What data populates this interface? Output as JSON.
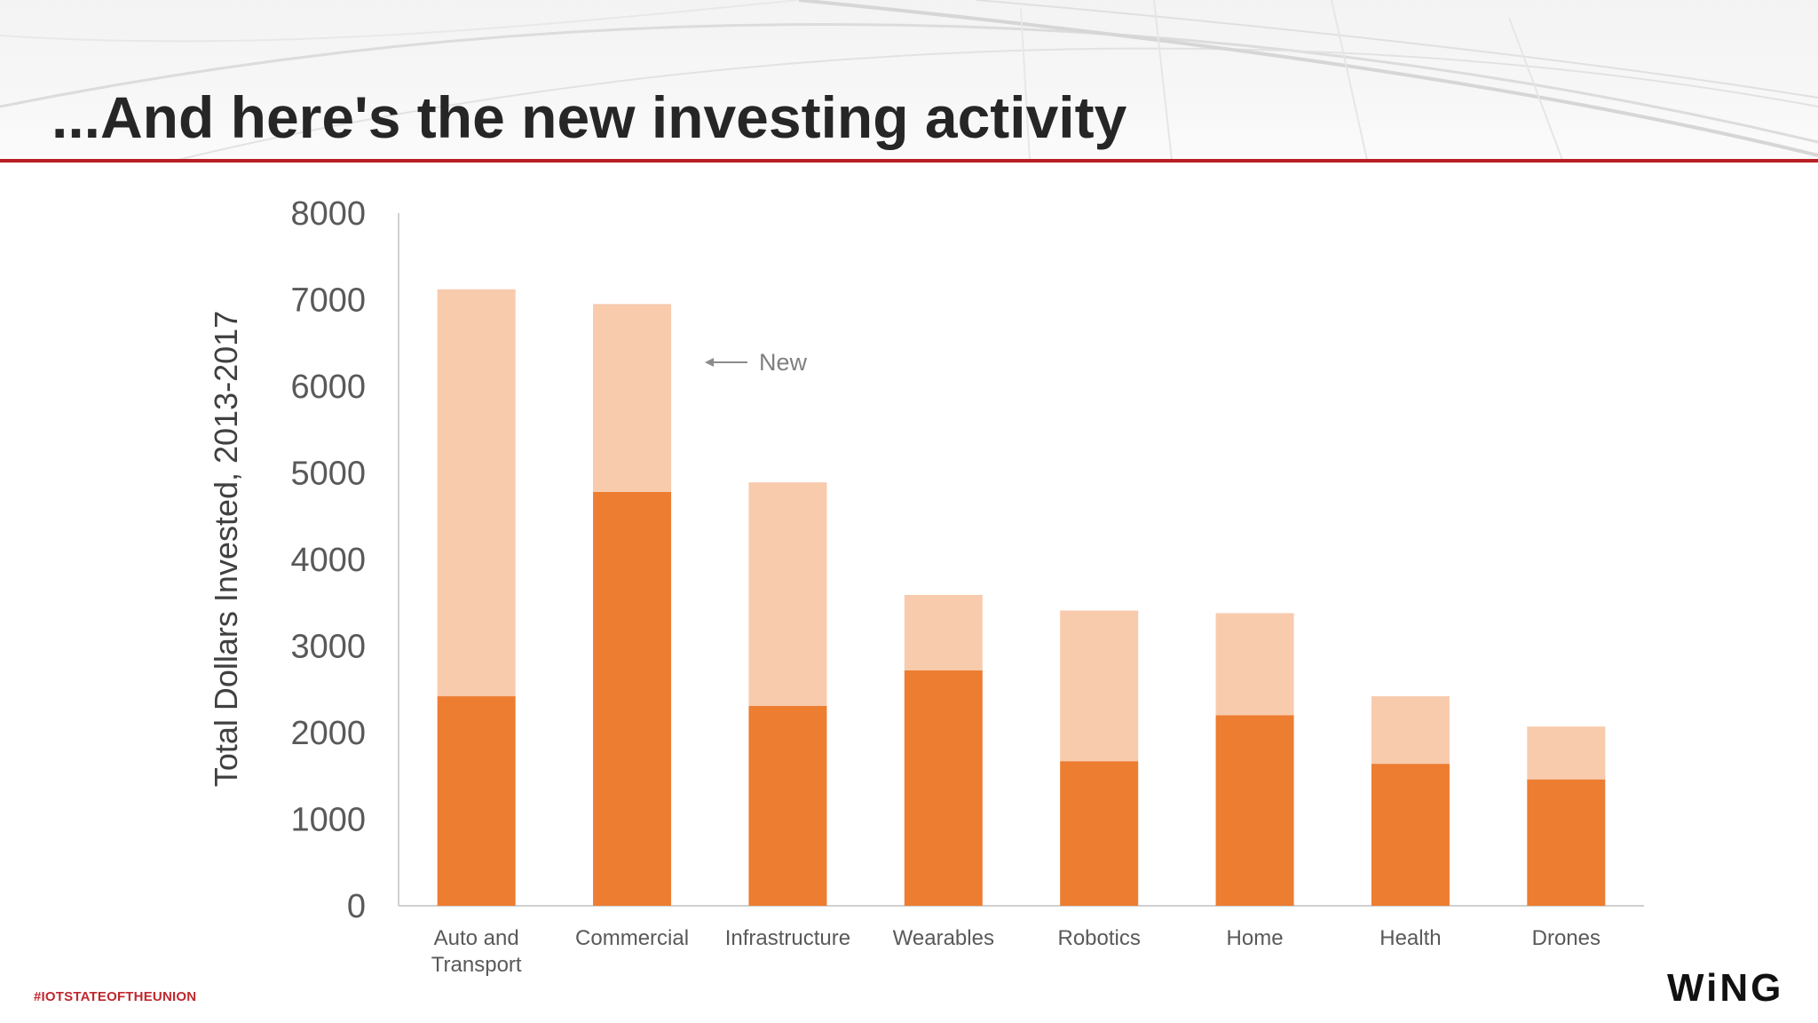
{
  "slide": {
    "title": "...And here's the new investing activity",
    "hashtag": "#IOTSTATEOFTHEUNION",
    "logo": "WiNG",
    "accent_color": "#b81f24"
  },
  "chart_data": {
    "type": "bar",
    "stacked": true,
    "categories": [
      "Auto and Transport",
      "Commercial",
      "Infrastructure",
      "Wearables",
      "Robotics",
      "Home",
      "Health",
      "Drones"
    ],
    "category_lines": [
      [
        "Auto and",
        "Transport"
      ],
      [
        "Commercial"
      ],
      [
        "Infrastructure"
      ],
      [
        "Wearables"
      ],
      [
        "Robotics"
      ],
      [
        "Home"
      ],
      [
        "Health"
      ],
      [
        "Drones"
      ]
    ],
    "series": [
      {
        "values": [
          2420,
          4780,
          2310,
          2720,
          1670,
          2200,
          1640,
          1460
        ],
        "color": "#ed7d31"
      },
      {
        "name": "New",
        "values": [
          4700,
          2170,
          2580,
          870,
          1740,
          1180,
          780,
          610
        ],
        "color": "#f8cbad"
      }
    ],
    "ylabel": "Total Dollars Invested, 2013-2017",
    "xlabel": "",
    "ylim": [
      0,
      8000
    ],
    "yticks": [
      "0",
      "1000",
      "2000",
      "3000",
      "4000",
      "5000",
      "6000",
      "7000",
      "8000"
    ],
    "annotation": {
      "text": "New",
      "arrow": "left",
      "target_series": 1
    },
    "grid": false
  }
}
